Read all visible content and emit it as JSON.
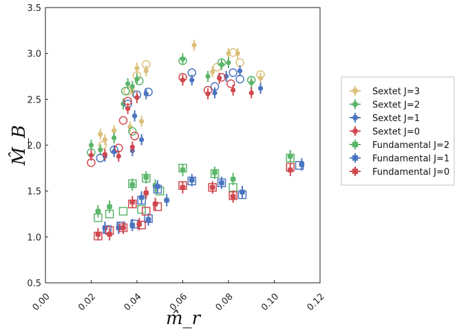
{
  "chart_data": {
    "type": "scatter",
    "title": "",
    "xlabel": "m̂_r",
    "ylabel": "M̂_B",
    "xlim": [
      0.0,
      0.12
    ],
    "ylim": [
      0.5,
      3.5
    ],
    "xticks": [
      "0.00",
      "0.02",
      "0.04",
      "0.06",
      "0.08",
      "0.10",
      "0.12"
    ],
    "yticks": [
      "0.5",
      "1.0",
      "1.5",
      "2.0",
      "2.5",
      "3.0",
      "3.5"
    ],
    "legend_position": "right-outside",
    "series": [
      {
        "name": "Sextet J=3",
        "color": "#dcc07a",
        "marker": "circle",
        "filled": [
          [
            0.024,
            2.12
          ],
          [
            0.026,
            2.06
          ],
          [
            0.03,
            2.16
          ],
          [
            0.037,
            2.2
          ],
          [
            0.038,
            2.59
          ],
          [
            0.04,
            2.84
          ],
          [
            0.042,
            2.26
          ],
          [
            0.044,
            2.81
          ],
          [
            0.065,
            3.09
          ],
          [
            0.073,
            2.8
          ],
          [
            0.08,
            3.0
          ],
          [
            0.084,
            3.0
          ],
          [
            0.094,
            2.73
          ]
        ],
        "open": [
          [
            0.025,
            2.0
          ],
          [
            0.036,
            2.59
          ],
          [
            0.04,
            2.76
          ],
          [
            0.044,
            2.88
          ],
          [
            0.075,
            2.85
          ],
          [
            0.082,
            3.01
          ],
          [
            0.085,
            2.9
          ],
          [
            0.094,
            2.77
          ]
        ]
      },
      {
        "name": "Sextet J=2",
        "color": "#5bb56b",
        "marker": "circle",
        "filled": [
          [
            0.02,
            2.0
          ],
          [
            0.024,
            1.95
          ],
          [
            0.03,
            2.08
          ],
          [
            0.034,
            2.45
          ],
          [
            0.036,
            2.67
          ],
          [
            0.038,
            2.64
          ],
          [
            0.04,
            2.72
          ],
          [
            0.06,
            2.94
          ],
          [
            0.071,
            2.75
          ],
          [
            0.077,
            2.88
          ],
          [
            0.08,
            2.9
          ],
          [
            0.09,
            2.68
          ]
        ],
        "open": [
          [
            0.02,
            1.92
          ],
          [
            0.035,
            2.59
          ],
          [
            0.038,
            2.15
          ],
          [
            0.041,
            2.7
          ],
          [
            0.06,
            2.92
          ],
          [
            0.077,
            2.9
          ],
          [
            0.09,
            2.71
          ]
        ]
      },
      {
        "name": "Sextet J=1",
        "color": "#4a74c0",
        "marker": "circle",
        "filled": [
          [
            0.026,
            1.88
          ],
          [
            0.03,
            1.93
          ],
          [
            0.038,
            1.94
          ],
          [
            0.039,
            2.32
          ],
          [
            0.042,
            2.06
          ],
          [
            0.044,
            2.56
          ],
          [
            0.064,
            2.71
          ],
          [
            0.074,
            2.57
          ],
          [
            0.079,
            2.75
          ],
          [
            0.085,
            2.81
          ],
          [
            0.094,
            2.62
          ]
        ],
        "open": [
          [
            0.024,
            1.86
          ],
          [
            0.03,
            1.95
          ],
          [
            0.036,
            2.45
          ],
          [
            0.04,
            2.55
          ],
          [
            0.045,
            2.58
          ],
          [
            0.064,
            2.79
          ],
          [
            0.074,
            2.64
          ],
          [
            0.082,
            2.79
          ],
          [
            0.085,
            2.72
          ]
        ]
      },
      {
        "name": "Sextet J=0",
        "color": "#d0474e",
        "marker": "circle",
        "filled": [
          [
            0.02,
            1.89
          ],
          [
            0.026,
            1.9
          ],
          [
            0.032,
            1.88
          ],
          [
            0.036,
            2.4
          ],
          [
            0.038,
            1.98
          ],
          [
            0.04,
            2.52
          ],
          [
            0.06,
            2.71
          ],
          [
            0.071,
            2.56
          ],
          [
            0.076,
            2.73
          ],
          [
            0.082,
            2.6
          ],
          [
            0.09,
            2.57
          ]
        ],
        "open": [
          [
            0.02,
            1.81
          ],
          [
            0.032,
            1.97
          ],
          [
            0.034,
            2.27
          ],
          [
            0.036,
            2.48
          ],
          [
            0.039,
            2.1
          ],
          [
            0.06,
            2.74
          ],
          [
            0.071,
            2.6
          ],
          [
            0.077,
            2.74
          ],
          [
            0.081,
            2.67
          ]
        ]
      },
      {
        "name": "Fundamental J=2",
        "color": "#5bb56b",
        "marker": "square",
        "filled": [
          [
            0.023,
            1.28
          ],
          [
            0.028,
            1.33
          ],
          [
            0.038,
            1.57
          ],
          [
            0.044,
            1.65
          ],
          [
            0.048,
            1.56
          ],
          [
            0.06,
            1.73
          ],
          [
            0.074,
            1.7
          ],
          [
            0.082,
            1.63
          ],
          [
            0.107,
            1.88
          ]
        ],
        "open": [
          [
            0.023,
            1.21
          ],
          [
            0.028,
            1.25
          ],
          [
            0.034,
            1.28
          ],
          [
            0.038,
            1.58
          ],
          [
            0.042,
            1.3
          ],
          [
            0.044,
            1.64
          ],
          [
            0.05,
            1.5
          ],
          [
            0.06,
            1.75
          ],
          [
            0.074,
            1.69
          ],
          [
            0.082,
            1.54
          ],
          [
            0.107,
            1.86
          ]
        ]
      },
      {
        "name": "Fundamental J=1",
        "color": "#4a74c0",
        "marker": "square",
        "filled": [
          [
            0.026,
            1.1
          ],
          [
            0.032,
            1.1
          ],
          [
            0.038,
            1.13
          ],
          [
            0.042,
            1.43
          ],
          [
            0.045,
            1.19
          ],
          [
            0.049,
            1.55
          ],
          [
            0.053,
            1.4
          ],
          [
            0.064,
            1.62
          ],
          [
            0.077,
            1.59
          ],
          [
            0.086,
            1.49
          ],
          [
            0.112,
            1.79
          ]
        ],
        "open": [
          [
            0.027,
            1.08
          ],
          [
            0.033,
            1.12
          ],
          [
            0.039,
            1.14
          ],
          [
            0.042,
            1.4
          ],
          [
            0.045,
            1.2
          ],
          [
            0.049,
            1.52
          ],
          [
            0.064,
            1.61
          ],
          [
            0.077,
            1.59
          ],
          [
            0.086,
            1.46
          ],
          [
            0.111,
            1.78
          ]
        ]
      },
      {
        "name": "Fundamental J=0",
        "color": "#d0474e",
        "marker": "square",
        "filled": [
          [
            0.023,
            1.03
          ],
          [
            0.028,
            1.03
          ],
          [
            0.034,
            1.1
          ],
          [
            0.038,
            1.38
          ],
          [
            0.041,
            1.14
          ],
          [
            0.044,
            1.48
          ],
          [
            0.048,
            1.36
          ],
          [
            0.06,
            1.54
          ],
          [
            0.073,
            1.54
          ],
          [
            0.082,
            1.44
          ],
          [
            0.107,
            1.73
          ]
        ],
        "open": [
          [
            0.023,
            1.01
          ],
          [
            0.028,
            1.07
          ],
          [
            0.034,
            1.1
          ],
          [
            0.038,
            1.36
          ],
          [
            0.042,
            1.13
          ],
          [
            0.044,
            1.28
          ],
          [
            0.049,
            1.33
          ],
          [
            0.06,
            1.56
          ],
          [
            0.073,
            1.54
          ],
          [
            0.082,
            1.45
          ],
          [
            0.107,
            1.76
          ]
        ]
      }
    ]
  }
}
